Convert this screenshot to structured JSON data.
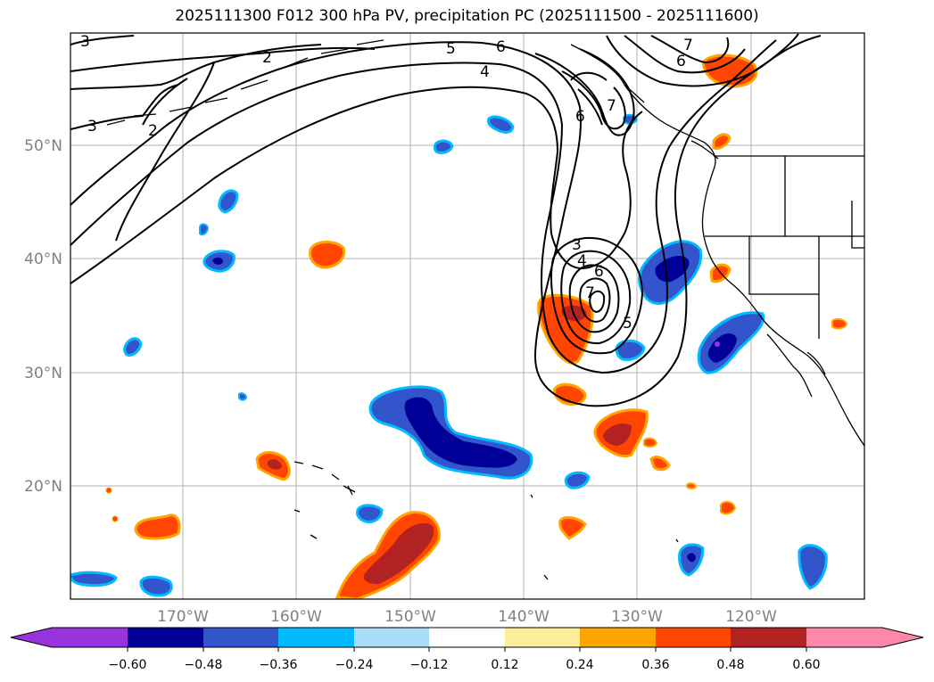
{
  "title": "2025111300 F012 300 hPa PV, precipitation PC (2025111500 - 2025111600)",
  "latitude_labels": [
    "50°N",
    "40°N",
    "30°N",
    "20°N"
  ],
  "longitude_labels": [
    "170°W",
    "160°W",
    "150°W",
    "140°W",
    "130°W",
    "120°W"
  ],
  "pv_contour_labels": [
    "3",
    "2",
    "3",
    "2",
    "5",
    "6",
    "4",
    "7",
    "6",
    "6",
    "7",
    "3",
    "4",
    "6",
    "7",
    "5"
  ],
  "colorbar": {
    "tick_labels": [
      "−0.60",
      "−0.48",
      "−0.36",
      "−0.24",
      "−0.12",
      "0.12",
      "0.24",
      "0.36",
      "0.48",
      "0.60"
    ],
    "colors": [
      "#9933dd",
      "#000099",
      "#3355cc",
      "#00bbff",
      "#aaddf7",
      "#ffffff",
      "#ffee99",
      "#ffa500",
      "#ff4500",
      "#b22222",
      "#ff88aa"
    ]
  }
}
